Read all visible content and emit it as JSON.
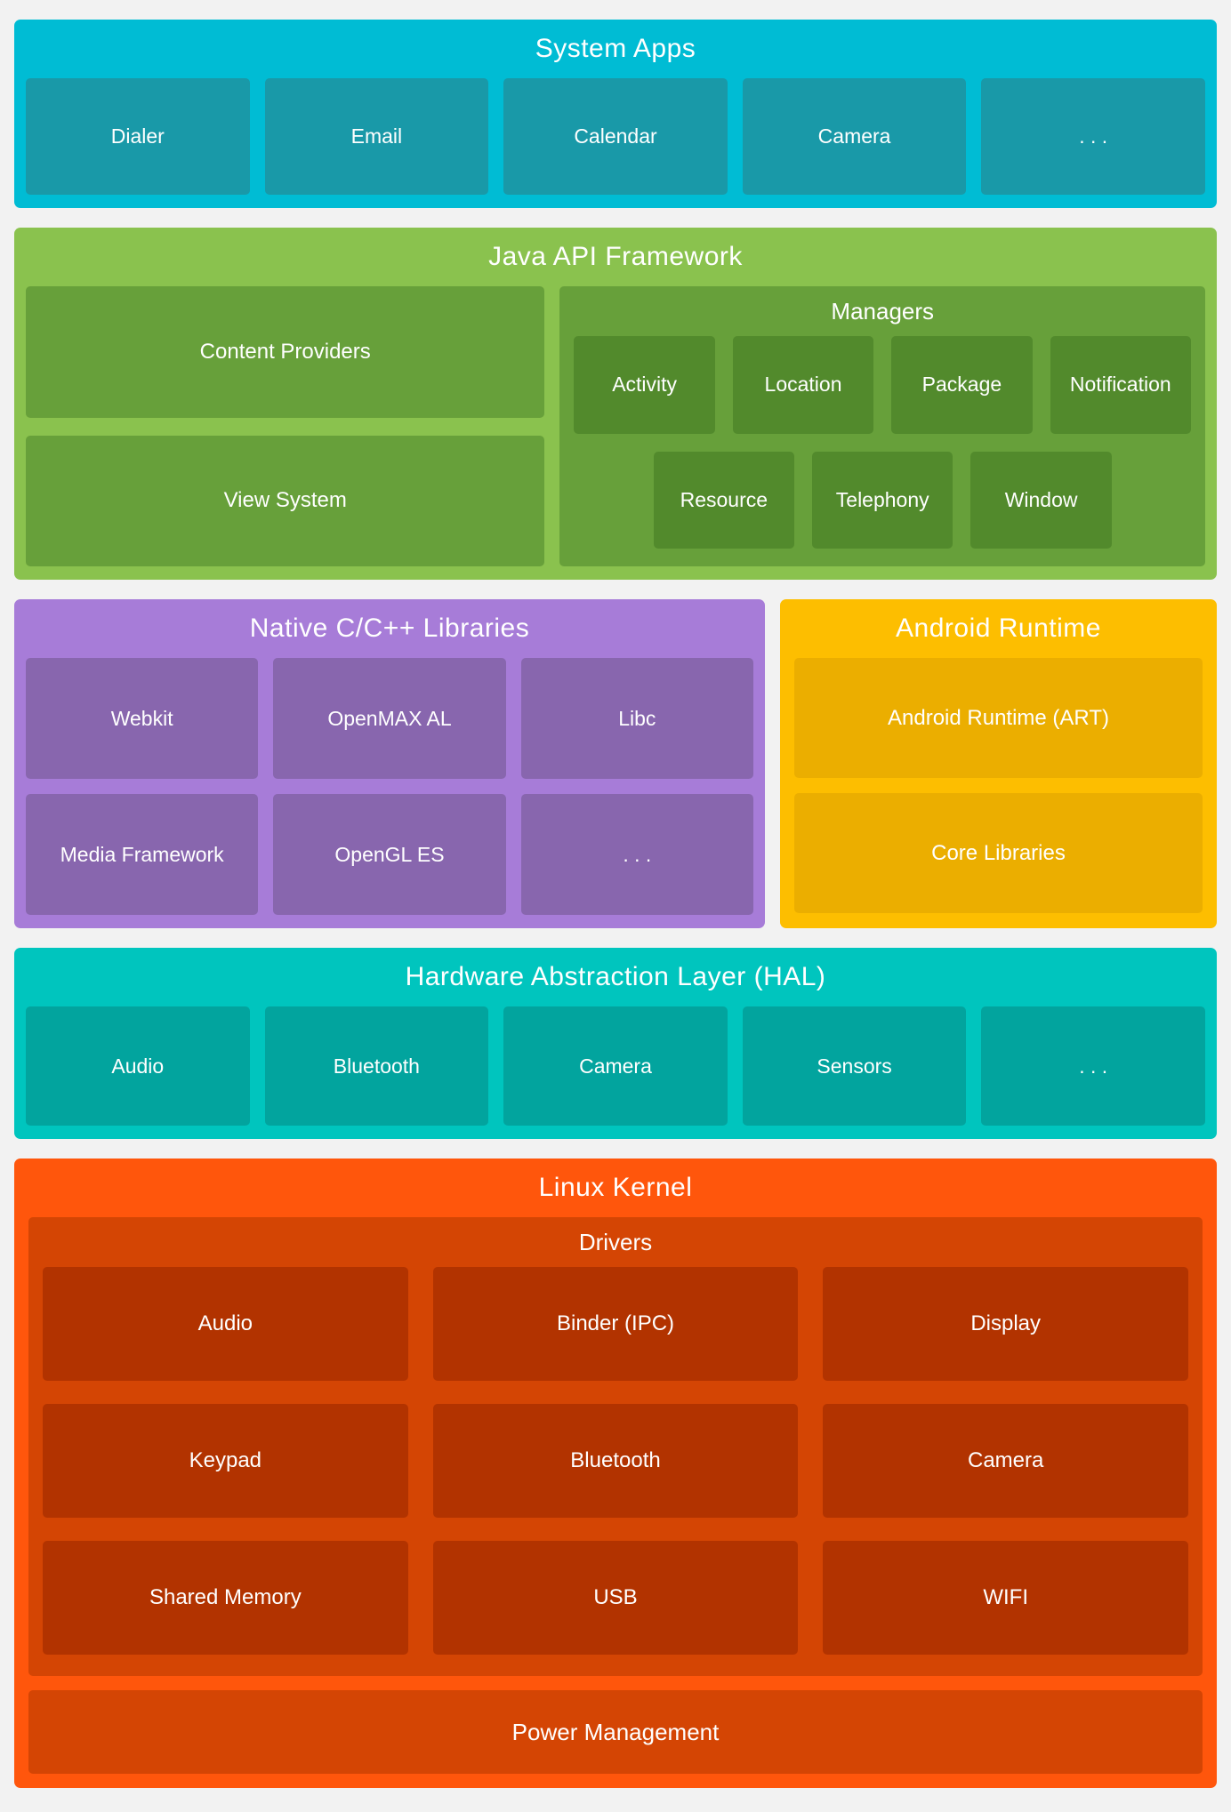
{
  "colors": {
    "page_bg": "#F2F2F2",
    "text": "#FFFFFF",
    "system_apps": {
      "bg": "#00BCD4",
      "box": "#1999A8"
    },
    "java_api": {
      "bg": "#8AC24E",
      "container": "#67A03A",
      "box": "#528A2C"
    },
    "native_libs": {
      "bg": "#A77CD8",
      "box": "#8866AE"
    },
    "android_runtime": {
      "bg": "#FDBE00",
      "box": "#EBAE00"
    },
    "hal": {
      "bg": "#00C5BE",
      "box": "#02A49E"
    },
    "linux_kernel": {
      "bg": "#FF560C",
      "container": "#D44504",
      "box": "#B23300"
    }
  },
  "sections": {
    "system_apps": {
      "title": "System Apps",
      "items": [
        "Dialer",
        "Email",
        "Calendar",
        "Camera",
        ". . ."
      ]
    },
    "java_api": {
      "title": "Java API Framework",
      "left_items": [
        "Content Providers",
        "View System"
      ],
      "managers": {
        "title": "Managers",
        "row1": [
          "Activity",
          "Location",
          "Package",
          "Notification"
        ],
        "row2": [
          "Resource",
          "Telephony",
          "Window"
        ]
      }
    },
    "native_libs": {
      "title": "Native C/C++ Libraries",
      "row1": [
        "Webkit",
        "OpenMAX AL",
        "Libc"
      ],
      "row2": [
        "Media Framework",
        "OpenGL ES",
        ". . ."
      ]
    },
    "android_runtime": {
      "title": "Android Runtime",
      "items": [
        "Android Runtime (ART)",
        "Core Libraries"
      ]
    },
    "hal": {
      "title": "Hardware Abstraction Layer (HAL)",
      "items": [
        "Audio",
        "Bluetooth",
        "Camera",
        "Sensors",
        ". . ."
      ]
    },
    "linux_kernel": {
      "title": "Linux Kernel",
      "drivers": {
        "title": "Drivers",
        "rows": [
          [
            "Audio",
            "Binder (IPC)",
            "Display"
          ],
          [
            "Keypad",
            "Bluetooth",
            "Camera"
          ],
          [
            "Shared Memory",
            "USB",
            "WIFI"
          ]
        ]
      },
      "power": "Power Management"
    }
  }
}
